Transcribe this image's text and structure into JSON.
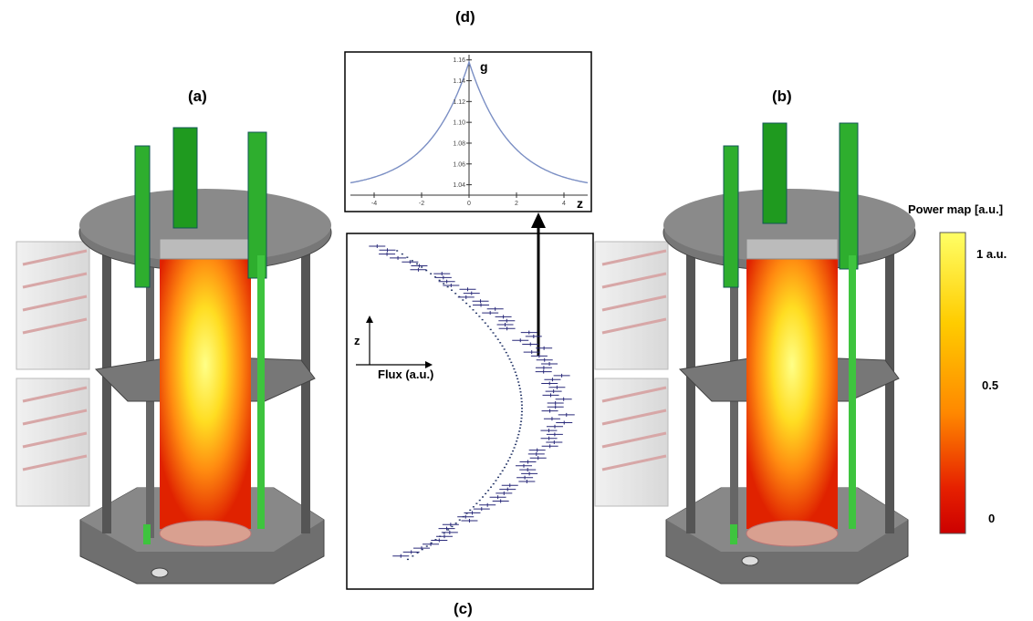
{
  "labels": {
    "a": "(a)",
    "b": "(b)",
    "c": "(c)",
    "d": "(d)"
  },
  "colorbar": {
    "title": "Power map [a.u.]",
    "tick_top": "1 a.u.",
    "tick_mid": "0.5",
    "tick_bottom": "0",
    "colors": [
      "#ffff66",
      "#ffcc00",
      "#ff8800",
      "#e62000",
      "#cc0000"
    ]
  },
  "flux_panel": {
    "z_label": "z",
    "flux_label": "Flux (a.u.)"
  },
  "chart_data": {
    "type": "line",
    "x_axis_label": "z",
    "y_axis_label": "g",
    "xlim": [
      -5,
      5
    ],
    "ylim": [
      1.03,
      1.165
    ],
    "x_ticks": [
      -4,
      -2,
      0,
      2,
      4
    ],
    "y_ticks": [
      1.04,
      1.06,
      1.08,
      1.1,
      1.12,
      1.14,
      1.16
    ],
    "y_tick_labels": [
      "1.04",
      "1.06",
      "1.08",
      "1.10",
      "1.12",
      "1.14",
      "1.16"
    ],
    "x_tick_labels": [
      "-4",
      "-2",
      "0",
      "2",
      "4"
    ],
    "x": [
      -5,
      -4,
      -3,
      -2,
      -1,
      0,
      1,
      2,
      3,
      4,
      5
    ],
    "y": [
      1.035,
      1.045,
      1.058,
      1.075,
      1.1,
      1.158,
      1.1,
      1.075,
      1.058,
      1.045,
      1.035
    ]
  }
}
